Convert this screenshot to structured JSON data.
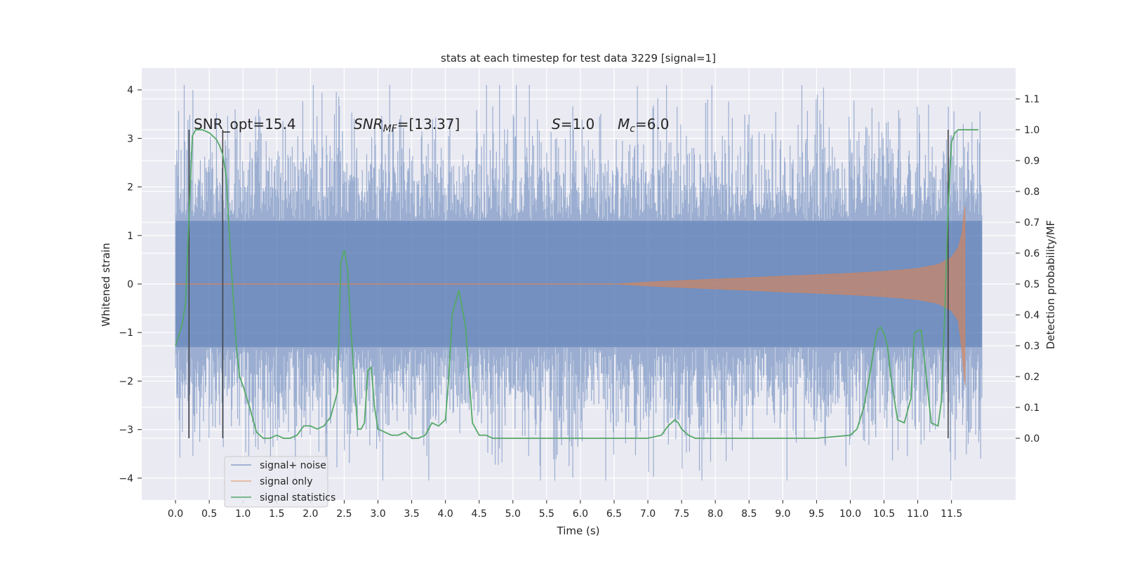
{
  "chart_data": {
    "type": "line",
    "title": "stats at each timestep for test data 3229 [signal=1]",
    "xlabel": "Time (s)",
    "ylabel": "Whitened strain",
    "ylabel_right": "Detection probability/MF",
    "xlim": [
      -0.5,
      12.45
    ],
    "ylim": [
      -4.45,
      4.45
    ],
    "ylim_right": [
      -0.2,
      1.2
    ],
    "x_ticks": [
      0.0,
      0.5,
      1.0,
      1.5,
      2.0,
      2.5,
      3.0,
      3.5,
      4.0,
      4.5,
      5.0,
      5.5,
      6.0,
      6.5,
      7.0,
      7.5,
      8.0,
      8.5,
      9.0,
      9.5,
      10.0,
      10.5,
      11.0,
      11.5
    ],
    "x_tick_labels": [
      "0.0",
      "0.5",
      "1.0",
      "1.5",
      "2.0",
      "2.5",
      "3.0",
      "3.5",
      "4.0",
      "4.5",
      "5.0",
      "5.5",
      "6.0",
      "6.5",
      "7.0",
      "7.5",
      "8.0",
      "8.5",
      "9.0",
      "9.5",
      "10.0",
      "10.5",
      "11.0",
      "11.5"
    ],
    "y_ticks": [
      -4,
      -3,
      -2,
      -1,
      0,
      1,
      2,
      3,
      4
    ],
    "y_tick_labels": [
      "−4",
      "−3",
      "−2",
      "−1",
      "0",
      "1",
      "2",
      "3",
      "4"
    ],
    "y_ticks_right": [
      0.0,
      0.1,
      0.2,
      0.3,
      0.4,
      0.5,
      0.6,
      0.7,
      0.8,
      0.9,
      1.0,
      1.1
    ],
    "y_tick_labels_right": [
      "0.0",
      "0.1",
      "0.2",
      "0.3",
      "0.4",
      "0.5",
      "0.6",
      "0.7",
      "0.8",
      "0.9",
      "1.0",
      "1.1"
    ],
    "grid": true,
    "legend_position": "lower-left",
    "annotations": {
      "snr_opt": "SNR_opt=15.4",
      "snr_mf_symbol": "SNR",
      "snr_mf_sub": "MF",
      "snr_mf_value": "=[13.37]",
      "s_symbol": "S",
      "s_value": "=1.0",
      "mc_symbol": "M",
      "mc_sub": "c",
      "mc_value": "=6.0"
    },
    "series": [
      {
        "name": "signal+ noise",
        "color": "#4c72b0",
        "description_of_values": "white Gaussian-like noise spanning x 0.0–11.95 s, amplitude mostly within ±2.5, peaks near ±4",
        "x_range": [
          0.0,
          11.95
        ],
        "envelope": [
          -4.05,
          4.1
        ]
      },
      {
        "name": "signal only",
        "color": "#dd8452",
        "description": "chirp",
        "x": [
          0.0,
          6.5,
          7.0,
          8.0,
          9.0,
          10.0,
          10.5,
          11.0,
          11.3,
          11.5,
          11.6,
          11.65,
          11.7
        ],
        "amplitude": [
          0.0,
          0.0,
          0.04,
          0.1,
          0.16,
          0.22,
          0.26,
          0.32,
          0.4,
          0.55,
          0.75,
          1.0,
          1.6
        ]
      },
      {
        "name": "signal statistics",
        "color": "#55a868",
        "axis": "right",
        "x": [
          0.0,
          0.1,
          0.15,
          0.2,
          0.25,
          0.3,
          0.4,
          0.5,
          0.6,
          0.65,
          0.7,
          0.75,
          0.8,
          0.9,
          0.95,
          1.0,
          1.1,
          1.2,
          1.3,
          1.4,
          1.5,
          1.6,
          1.7,
          1.8,
          1.9,
          2.0,
          2.1,
          2.2,
          2.3,
          2.4,
          2.45,
          2.5,
          2.55,
          2.6,
          2.7,
          2.75,
          2.8,
          2.85,
          2.9,
          2.95,
          3.0,
          3.1,
          3.2,
          3.3,
          3.4,
          3.5,
          3.6,
          3.7,
          3.8,
          3.9,
          4.0,
          4.05,
          4.1,
          4.2,
          4.3,
          4.35,
          4.4,
          4.5,
          4.6,
          4.7,
          4.8,
          5.0,
          5.2,
          5.5,
          6.0,
          6.5,
          7.0,
          7.2,
          7.3,
          7.4,
          7.45,
          7.5,
          7.6,
          7.7,
          7.8,
          8.0,
          8.5,
          9.0,
          9.5,
          10.0,
          10.1,
          10.2,
          10.3,
          10.35,
          10.4,
          10.45,
          10.5,
          10.55,
          10.6,
          10.7,
          10.8,
          10.9,
          10.95,
          11.0,
          11.05,
          11.1,
          11.2,
          11.3,
          11.35,
          11.4,
          11.45,
          11.5,
          11.55,
          11.6,
          11.7,
          11.8,
          11.85,
          11.9
        ],
        "values": [
          0.3,
          0.37,
          0.44,
          0.72,
          0.98,
          1.0,
          1.0,
          0.99,
          0.97,
          0.95,
          0.92,
          0.85,
          0.65,
          0.3,
          0.2,
          0.17,
          0.1,
          0.02,
          0.0,
          0.0,
          0.01,
          0.0,
          0.0,
          0.01,
          0.04,
          0.04,
          0.03,
          0.04,
          0.07,
          0.15,
          0.57,
          0.61,
          0.55,
          0.35,
          0.03,
          0.03,
          0.05,
          0.22,
          0.23,
          0.1,
          0.03,
          0.02,
          0.01,
          0.01,
          0.02,
          0.0,
          0.0,
          0.01,
          0.05,
          0.04,
          0.06,
          0.2,
          0.4,
          0.48,
          0.36,
          0.2,
          0.05,
          0.01,
          0.01,
          0.0,
          0.0,
          0.0,
          0.0,
          0.0,
          0.0,
          0.0,
          0.0,
          0.01,
          0.04,
          0.06,
          0.05,
          0.03,
          0.01,
          0.0,
          0.0,
          0.0,
          0.0,
          0.0,
          0.0,
          0.01,
          0.03,
          0.1,
          0.22,
          0.29,
          0.35,
          0.36,
          0.34,
          0.3,
          0.2,
          0.06,
          0.05,
          0.13,
          0.34,
          0.35,
          0.35,
          0.25,
          0.05,
          0.04,
          0.12,
          0.4,
          0.75,
          0.96,
          0.99,
          1.0,
          1.0,
          1.0,
          1.0,
          1.0
        ]
      }
    ],
    "vertical_markers_x": [
      0.2,
      0.7,
      11.45
    ],
    "vertical_markers_color": "#404040",
    "legend": [
      "signal+ noise",
      "signal only",
      "signal statistics"
    ]
  }
}
